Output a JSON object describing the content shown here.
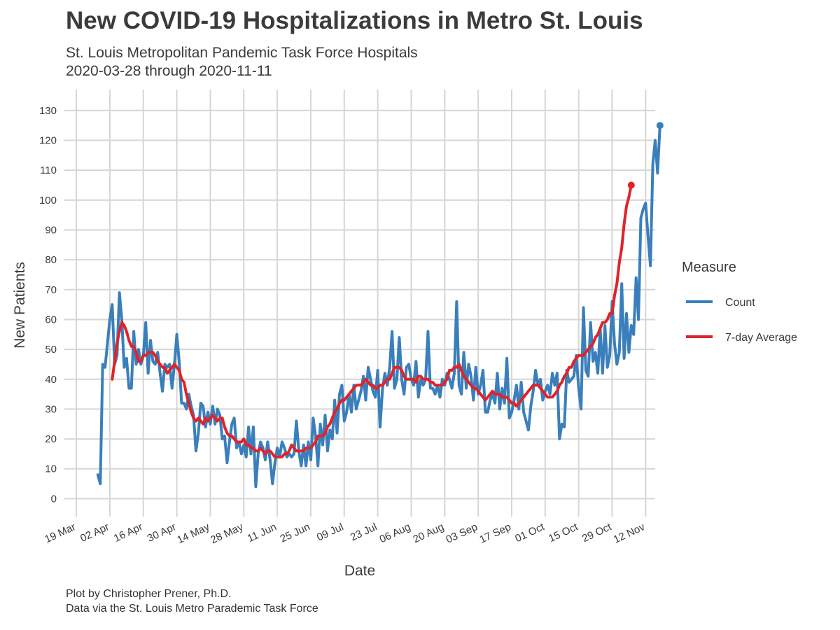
{
  "header": {
    "title": "New COVID-19 Hospitalizations in Metro St. Louis",
    "subtitle_line1": "St. Louis Metropolitan Pandemic Task Force Hospitals",
    "subtitle_line2": "2020-03-28 through 2020-11-11"
  },
  "footer": {
    "caption_line1": "Plot by Christopher Prener, Ph.D.",
    "caption_line2": "Data via the St. Louis Metro Parademic Task Force"
  },
  "chart_data": {
    "type": "line",
    "xlabel": "Date",
    "ylabel": "New Patients",
    "x_start": "2020-03-28",
    "x_end": "2020-11-11",
    "xlim": [
      "2020-03-14",
      "2020-11-16"
    ],
    "ylim": [
      -6,
      137
    ],
    "x_ticks": [
      {
        "date": "2020-03-19",
        "label": "19 Mar"
      },
      {
        "date": "2020-04-02",
        "label": "02 Apr"
      },
      {
        "date": "2020-04-16",
        "label": "16 Apr"
      },
      {
        "date": "2020-04-30",
        "label": "30 Apr"
      },
      {
        "date": "2020-05-14",
        "label": "14 May"
      },
      {
        "date": "2020-05-28",
        "label": "28 May"
      },
      {
        "date": "2020-06-11",
        "label": "11 Jun"
      },
      {
        "date": "2020-06-25",
        "label": "25 Jun"
      },
      {
        "date": "2020-07-09",
        "label": "09 Jul"
      },
      {
        "date": "2020-07-23",
        "label": "23 Jul"
      },
      {
        "date": "2020-08-06",
        "label": "06 Aug"
      },
      {
        "date": "2020-08-20",
        "label": "20 Aug"
      },
      {
        "date": "2020-09-03",
        "label": "03 Sep"
      },
      {
        "date": "2020-09-17",
        "label": "17 Sep"
      },
      {
        "date": "2020-10-01",
        "label": "01 Oct"
      },
      {
        "date": "2020-10-15",
        "label": "15 Oct"
      },
      {
        "date": "2020-10-29",
        "label": "29 Oct"
      },
      {
        "date": "2020-11-12",
        "label": "12 Nov"
      }
    ],
    "y_ticks": [
      0,
      10,
      20,
      30,
      40,
      50,
      60,
      70,
      80,
      90,
      100,
      110,
      120,
      130
    ],
    "grid": true,
    "legend": {
      "title": "Measure",
      "position": "right"
    },
    "series": [
      {
        "name": "Count",
        "color": "#3a7fbb",
        "values": [
          8,
          5,
          45,
          44,
          52,
          60,
          65,
          45,
          48,
          69,
          60,
          44,
          47,
          37,
          37,
          56,
          45,
          50,
          45,
          48,
          59,
          42,
          53,
          46,
          45,
          49,
          42,
          36,
          45,
          44,
          45,
          37,
          45,
          55,
          46,
          32,
          32,
          30,
          35,
          31,
          28,
          16,
          22,
          32,
          31,
          24,
          29,
          25,
          31,
          25,
          30,
          28,
          20,
          21,
          12,
          19,
          25,
          27,
          17,
          19,
          15,
          18,
          14,
          24,
          15,
          24,
          4,
          15,
          19,
          17,
          13,
          19,
          13,
          5,
          12,
          17,
          14,
          19,
          17,
          14,
          15,
          14,
          15,
          26,
          16,
          11,
          18,
          11,
          19,
          13,
          27,
          21,
          11,
          25,
          18,
          28,
          16,
          23,
          20,
          33,
          22,
          35,
          38,
          26,
          29,
          35,
          29,
          38,
          30,
          33,
          36,
          41,
          33,
          44,
          40,
          36,
          34,
          43,
          24,
          37,
          42,
          38,
          44,
          56,
          37,
          40,
          54,
          40,
          35,
          44,
          45,
          40,
          38,
          46,
          34,
          40,
          38,
          40,
          56,
          37,
          37,
          35,
          38,
          34,
          40,
          38,
          42,
          40,
          37,
          42,
          66,
          38,
          35,
          49,
          37,
          45,
          41,
          33,
          44,
          35,
          38,
          43,
          29,
          29,
          33,
          35,
          32,
          42,
          30,
          37,
          32,
          47,
          27,
          29,
          33,
          38,
          30,
          39,
          29,
          26,
          23,
          31,
          36,
          43,
          38,
          40,
          33,
          36,
          38,
          35,
          42,
          38,
          42,
          20,
          25,
          24,
          43,
          39,
          40,
          41,
          48,
          37,
          30,
          64,
          43,
          41,
          59,
          46,
          49,
          42,
          57,
          42,
          58,
          44,
          48,
          66,
          52,
          45,
          49,
          72,
          47,
          62,
          49,
          58,
          55,
          74,
          60,
          94,
          97,
          99,
          88,
          78,
          112,
          120,
          109,
          125
        ]
      },
      {
        "name": "7-day Average",
        "color": "#e0232a",
        "values": [
          null,
          null,
          null,
          null,
          null,
          null,
          40,
          46,
          52,
          56,
          59,
          58,
          56,
          53,
          51,
          51,
          49,
          46,
          46,
          48,
          48,
          49,
          49,
          49,
          48,
          46,
          45,
          44,
          44,
          42,
          43,
          44,
          45,
          44,
          43,
          40,
          39,
          35,
          32,
          29,
          27,
          26,
          27,
          26,
          25,
          27,
          26,
          27,
          28,
          27,
          26,
          27,
          27,
          24,
          22,
          21,
          21,
          20,
          19,
          19,
          19,
          20,
          18,
          18,
          17,
          17,
          16,
          16,
          17,
          16,
          15,
          16,
          16,
          15,
          14,
          14,
          14,
          14,
          15,
          15,
          16,
          18,
          17,
          16,
          16,
          16,
          16,
          17,
          17,
          17,
          18,
          19,
          21,
          21,
          21,
          22,
          24,
          25,
          27,
          29,
          30,
          32,
          33,
          33,
          34,
          35,
          36,
          37,
          38,
          38,
          38,
          39,
          40,
          39,
          38,
          38,
          37,
          37,
          38,
          38,
          39,
          40,
          40,
          42,
          44,
          44,
          44,
          43,
          41,
          40,
          40,
          40,
          40,
          39,
          41,
          41,
          40,
          40,
          40,
          39,
          39,
          38,
          38,
          38,
          38,
          39,
          40,
          43,
          43,
          44,
          44,
          45,
          43,
          41,
          40,
          39,
          38,
          37,
          37,
          36,
          35,
          34,
          33,
          34,
          35,
          36,
          35,
          35,
          35,
          34,
          34,
          34,
          33,
          32,
          32,
          31,
          32,
          33,
          34,
          35,
          36,
          37,
          38,
          38,
          38,
          37,
          36,
          35,
          34,
          34,
          34,
          35,
          36,
          38,
          39,
          41,
          42,
          44,
          44,
          46,
          47,
          48,
          48,
          48,
          49,
          50,
          51,
          52,
          54,
          55,
          57,
          59,
          59,
          60,
          62,
          62,
          68,
          72,
          79,
          84,
          92,
          98,
          101,
          105
        ]
      }
    ]
  }
}
